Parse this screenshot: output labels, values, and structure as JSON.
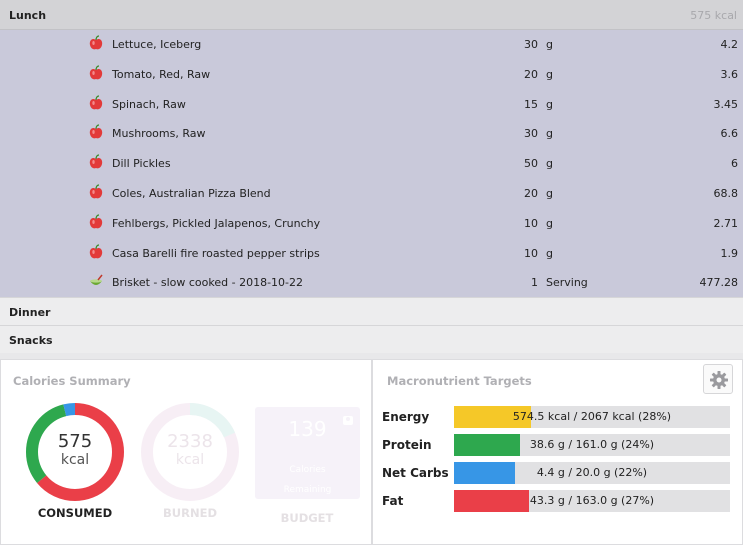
{
  "lunch": {
    "title": "Lunch",
    "kcal": "575 kcal",
    "items": [
      {
        "name": "Lettuce, Iceberg",
        "qty": "30",
        "unit": "g",
        "value": "4.2",
        "icon": "apple-icon"
      },
      {
        "name": "Tomato, Red, Raw",
        "qty": "20",
        "unit": "g",
        "value": "3.6",
        "icon": "apple-icon"
      },
      {
        "name": "Spinach, Raw",
        "qty": "15",
        "unit": "g",
        "value": "3.45",
        "icon": "apple-icon"
      },
      {
        "name": "Mushrooms, Raw",
        "qty": "30",
        "unit": "g",
        "value": "6.6",
        "icon": "apple-icon"
      },
      {
        "name": "Dill Pickles",
        "qty": "50",
        "unit": "g",
        "value": "6",
        "icon": "apple-icon"
      },
      {
        "name": "Coles, Australian Pizza Blend",
        "qty": "20",
        "unit": "g",
        "value": "68.8",
        "icon": "apple-icon"
      },
      {
        "name": "Fehlbergs, Pickled Jalapenos, Crunchy",
        "qty": "10",
        "unit": "g",
        "value": "2.71",
        "icon": "apple-icon"
      },
      {
        "name": "Casa Barelli fire roasted pepper strips",
        "qty": "10",
        "unit": "g",
        "value": "1.9",
        "icon": "apple-icon"
      },
      {
        "name": "Brisket - slow cooked - 2018-10-22",
        "qty": "1",
        "unit": "Serving",
        "value": "477.28",
        "icon": "recipe-bowl-icon"
      }
    ]
  },
  "meals": {
    "dinner": "Dinner",
    "snacks": "Snacks"
  },
  "calories_summary": {
    "title": "Calories Summary",
    "consumed": {
      "value": "575",
      "unit": "kcal",
      "label": "CONSUMED"
    },
    "burned": {
      "value": "2338",
      "unit": "kcal",
      "label": "BURNED"
    },
    "budget": {
      "value": "139",
      "line1": "Calories",
      "line2": "Remaining",
      "label": "BUDGET"
    },
    "consumed_ring": {
      "carbs_fraction": 0.04,
      "protein_fraction": 0.32,
      "fat_fraction": 0.64
    },
    "colors": {
      "fat": "#ea3f48",
      "protein": "#2ea84e",
      "carbs": "#3796e6"
    }
  },
  "macros": {
    "title": "Macronutrient Targets",
    "rows": [
      {
        "label": "Energy",
        "text": "574.5 kcal / 2067 kcal (28%)",
        "fraction": 0.28,
        "color": "#f5c828"
      },
      {
        "label": "Protein",
        "text": "38.6 g / 161.0 g (24%)",
        "fraction": 0.24,
        "color": "#2ea84e"
      },
      {
        "label": "Net Carbs",
        "text": "4.4 g / 20.0 g (22%)",
        "fraction": 0.22,
        "color": "#3796e6"
      },
      {
        "label": "Fat",
        "text": "43.3 g / 163.0 g (27%)",
        "fraction": 0.27,
        "color": "#ea3f48"
      }
    ]
  }
}
